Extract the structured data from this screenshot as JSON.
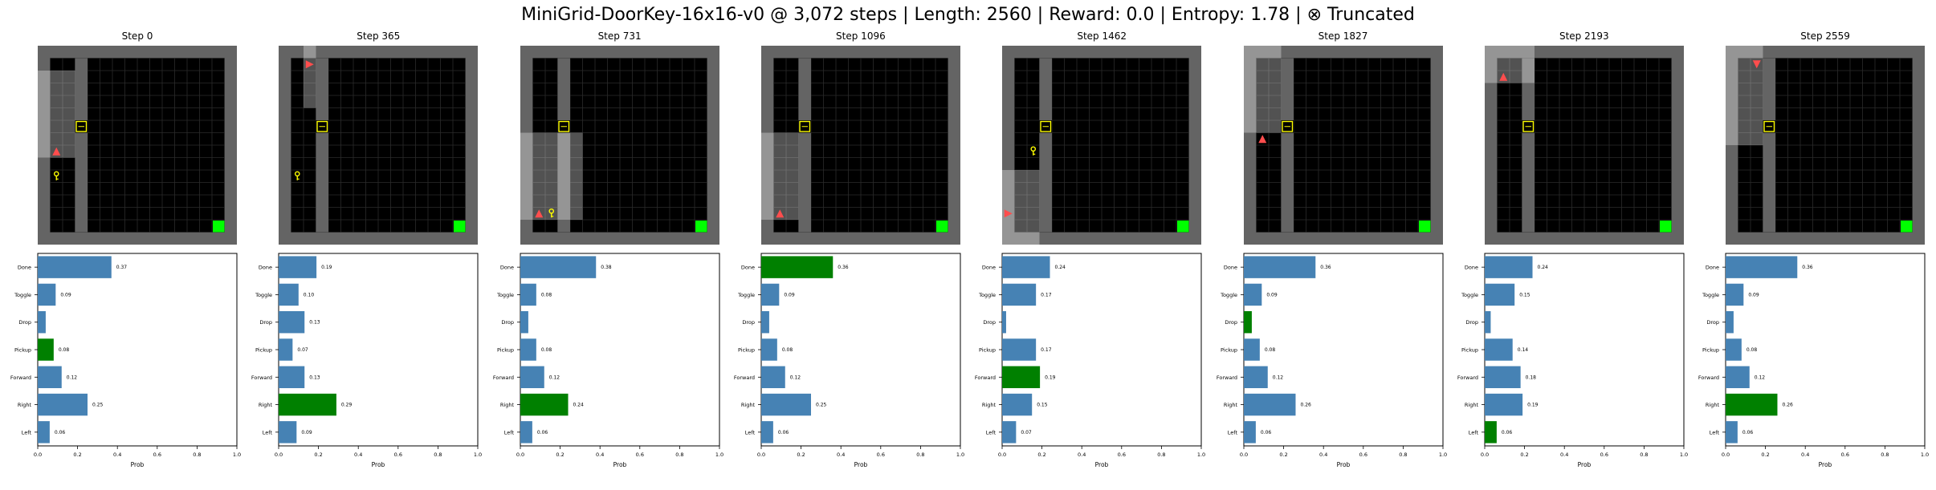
{
  "title": "MiniGrid-DoorKey-16x16-v0 @ 3,072 steps | Length: 2560 | Reward: 0.0 | Entropy: 1.78 | ⊗ Truncated",
  "colors": {
    "wall": "#646464",
    "floor": "#000000",
    "gridline": "#2b2b2b",
    "visible_overlay": "#9a9a9a",
    "agent": "#ff4d4d",
    "key": "#ffff00",
    "door": "#ffff00",
    "goal": "#00ff00",
    "bar_default": "#4682b4",
    "bar_selected": "#008000"
  },
  "chart_data": {
    "type": "bar",
    "orientation": "horizontal",
    "categories": [
      "Done",
      "Toggle",
      "Drop",
      "Pickup",
      "Forward",
      "Right",
      "Left"
    ],
    "xlabel": "Prob",
    "xlim": [
      0,
      1
    ],
    "xticks": [
      "0.0",
      "0.2",
      "0.4",
      "0.6",
      "0.8",
      "1.0"
    ],
    "panels": [
      {
        "title": "Step 0",
        "values": [
          0.37,
          0.09,
          0.04,
          0.08,
          0.12,
          0.25,
          0.06
        ],
        "labels": [
          "0.37",
          "0.09",
          "",
          "0.08",
          "0.12",
          "0.25",
          "0.06"
        ],
        "selected": "Pickup"
      },
      {
        "title": "Step 365",
        "values": [
          0.19,
          0.1,
          0.13,
          0.07,
          0.13,
          0.29,
          0.09
        ],
        "labels": [
          "0.19",
          "0.10",
          "0.13",
          "0.07",
          "0.13",
          "0.29",
          "0.09"
        ],
        "selected": "Right"
      },
      {
        "title": "Step 731",
        "values": [
          0.38,
          0.08,
          0.04,
          0.08,
          0.12,
          0.24,
          0.06
        ],
        "labels": [
          "0.38",
          "0.08",
          "",
          "0.08",
          "0.12",
          "0.24",
          "0.06"
        ],
        "selected": "Right"
      },
      {
        "title": "Step 1096",
        "values": [
          0.36,
          0.09,
          0.04,
          0.08,
          0.12,
          0.25,
          0.06
        ],
        "labels": [
          "0.36",
          "0.09",
          "",
          "0.08",
          "0.12",
          "0.25",
          "0.06"
        ],
        "selected": "Done"
      },
      {
        "title": "Step 1462",
        "values": [
          0.24,
          0.17,
          0.02,
          0.17,
          0.19,
          0.15,
          0.07
        ],
        "labels": [
          "0.24",
          "0.17",
          "",
          "0.17",
          "0.19",
          "0.15",
          "0.07"
        ],
        "selected": "Forward"
      },
      {
        "title": "Step 1827",
        "values": [
          0.36,
          0.09,
          0.04,
          0.08,
          0.12,
          0.26,
          0.06
        ],
        "labels": [
          "0.36",
          "0.09",
          "",
          "0.08",
          "0.12",
          "0.26",
          "0.06"
        ],
        "selected": "Drop"
      },
      {
        "title": "Step 2193",
        "values": [
          0.24,
          0.15,
          0.03,
          0.14,
          0.18,
          0.19,
          0.06
        ],
        "labels": [
          "0.24",
          "0.15",
          "",
          "0.14",
          "0.18",
          "0.19",
          "0.06"
        ],
        "selected": "Left"
      },
      {
        "title": "Step 2559",
        "values": [
          0.36,
          0.09,
          0.04,
          0.08,
          0.12,
          0.26,
          0.06
        ],
        "labels": [
          "0.36",
          "0.09",
          "",
          "0.08",
          "0.12",
          "0.26",
          "0.06"
        ],
        "selected": "Right"
      }
    ]
  },
  "grid_frames": [
    {
      "view": [
        0,
        2,
        3,
        9
      ],
      "agent": {
        "x": 1,
        "y": 8,
        "dir": "up"
      },
      "key": {
        "x": 1,
        "y": 10
      }
    },
    {
      "view": [
        2,
        0,
        3,
        5
      ],
      "agent": {
        "x": 2,
        "y": 1,
        "dir": "right"
      },
      "key": {
        "x": 1,
        "y": 10
      }
    },
    {
      "view": [
        0,
        7,
        5,
        14
      ],
      "agent": {
        "x": 1,
        "y": 13,
        "dir": "up"
      },
      "key": {
        "x": 2,
        "y": 13
      }
    },
    {
      "view": [
        0,
        7,
        3,
        14
      ],
      "agent": {
        "x": 1,
        "y": 13,
        "dir": "up"
      },
      "key": null
    },
    {
      "view": [
        0,
        10,
        3,
        16
      ],
      "agent": {
        "x": 0,
        "y": 13,
        "dir": "right"
      },
      "key": {
        "x": 2,
        "y": 8
      }
    },
    {
      "view": [
        0,
        0,
        3,
        7
      ],
      "agent": {
        "x": 1,
        "y": 7,
        "dir": "up"
      },
      "key": null
    },
    {
      "view": [
        0,
        0,
        4,
        3
      ],
      "agent": {
        "x": 1,
        "y": 2,
        "dir": "up"
      },
      "key": null
    },
    {
      "view": [
        0,
        0,
        3,
        8
      ],
      "agent": {
        "x": 2,
        "y": 1,
        "dir": "down"
      },
      "key": null
    }
  ]
}
